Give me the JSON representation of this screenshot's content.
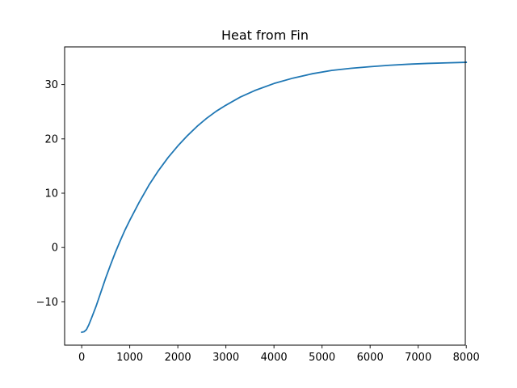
{
  "chart_data": {
    "type": "line",
    "title": "Heat from Fin",
    "xlabel": "",
    "ylabel": "",
    "xlim": [
      -355,
      7980
    ],
    "ylim": [
      -17.98,
      36.94
    ],
    "xticks": [
      0,
      1000,
      2000,
      3000,
      4000,
      5000,
      6000,
      7000,
      8000
    ],
    "xtick_labels": [
      "0",
      "1000",
      "2000",
      "3000",
      "4000",
      "5000",
      "6000",
      "7000",
      "8000"
    ],
    "yticks": [
      -10,
      0,
      10,
      20,
      30
    ],
    "ytick_labels": [
      "−10",
      "0",
      "10",
      "20",
      "30"
    ],
    "grid": false,
    "colors": {
      "line": "#1f77b4",
      "axes": "#000000",
      "background": "#ffffff"
    },
    "series": [
      {
        "x": [
          0,
          50,
          100,
          150,
          200,
          300,
          400,
          500,
          600,
          700,
          800,
          900,
          1000,
          1200,
          1400,
          1600,
          1800,
          2000,
          2200,
          2400,
          2600,
          2800,
          3000,
          3300,
          3600,
          4000,
          4400,
          4800,
          5200,
          5600,
          6000,
          6400,
          6800,
          7200,
          7600,
          8000
        ],
        "y": [
          -15.6,
          -15.5,
          -15.1,
          -14.2,
          -13.1,
          -10.8,
          -8.2,
          -5.6,
          -3.2,
          -0.9,
          1.2,
          3.2,
          5.0,
          8.4,
          11.5,
          14.2,
          16.6,
          18.7,
          20.6,
          22.3,
          23.8,
          25.1,
          26.2,
          27.7,
          28.9,
          30.2,
          31.2,
          32.0,
          32.6,
          33.0,
          33.3,
          33.55,
          33.75,
          33.9,
          34.0,
          34.1
        ]
      }
    ]
  }
}
